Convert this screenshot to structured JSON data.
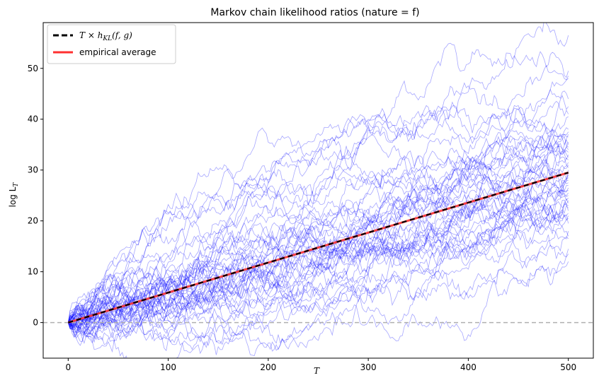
{
  "chart_data": {
    "type": "line",
    "title": "Markov chain likelihood ratios (nature = f)",
    "xlabel": "T",
    "ylabel": "log L_T",
    "xlim": [
      -25,
      525
    ],
    "ylim": [
      -7,
      59
    ],
    "x_ticks": [
      0,
      100,
      200,
      300,
      400,
      500
    ],
    "y_ticks": [
      0,
      10,
      20,
      30,
      40,
      50
    ],
    "grid": false,
    "legend_position": "top-left",
    "reference_line": {
      "y": 0,
      "style": "dashed",
      "color": "#b0b0b0"
    },
    "colors": {
      "paths": "#0000ff",
      "theory": "#000000",
      "average": "#ff3030"
    },
    "series": [
      {
        "name": "T × h_KL(f, g)",
        "style": "dashed",
        "x": [
          0,
          500
        ],
        "values": [
          0,
          29.5
        ]
      },
      {
        "name": "empirical average",
        "style": "solid",
        "x": [
          0,
          500
        ],
        "values": [
          0,
          29.5
        ]
      }
    ],
    "simulated_paths": {
      "count": 50,
      "T_max": 500,
      "final_values": [
        56.5,
        49.5,
        48.5,
        48.0,
        44.0,
        42.5,
        41.0,
        40.5,
        38.0,
        37.5,
        37.0,
        36.5,
        35.5,
        35.0,
        34.5,
        34.0,
        33.5,
        33.0,
        32.5,
        32.0,
        31.5,
        31.0,
        30.5,
        30.0,
        29.5,
        29.0,
        28.5,
        28.0,
        27.5,
        27.0,
        26.5,
        26.0,
        25.5,
        25.0,
        24.5,
        24.0,
        23.5,
        23.0,
        22.5,
        22.0,
        21.5,
        21.0,
        20.5,
        19.5,
        18.0,
        17.0,
        16.5,
        14.5,
        13.5,
        12.0
      ]
    }
  },
  "legend": {
    "entry_1_prefix": "T × h",
    "entry_1_sub": "KL",
    "entry_1_suffix": "(f, g)",
    "entry_2": "empirical average"
  },
  "axes": {
    "xlabel": "T",
    "ylabel_main": "log L",
    "ylabel_sub": "T"
  }
}
